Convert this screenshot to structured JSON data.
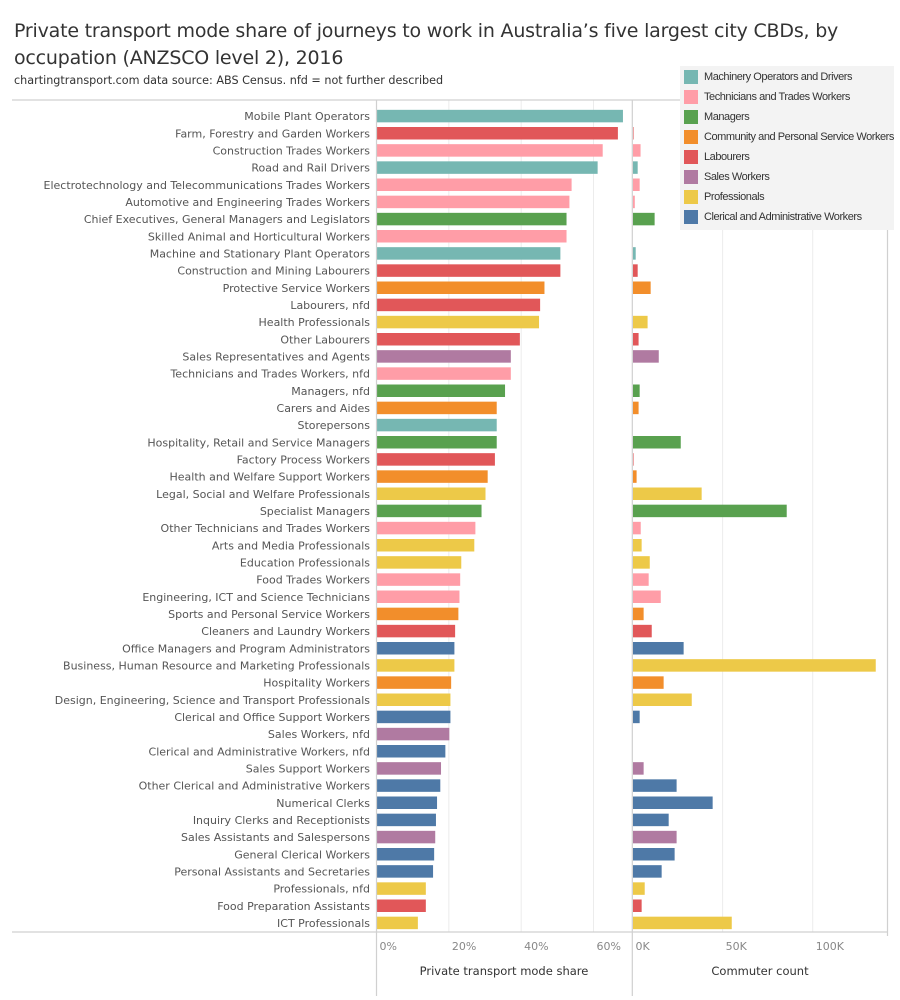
{
  "header": {
    "title": "Private transport mode share of journeys to work in Australia’s five largest city CBDs, by occupation (ANZSCO level 2), 2016",
    "subtitle": "chartingtransport.com  data source: ABS Census.  nfd = not further described"
  },
  "legend": {
    "items": [
      {
        "label": "Machinery Operators and Drivers",
        "color": "#76b7b2"
      },
      {
        "label": "Technicians and Trades Workers",
        "color": "#ff9da7"
      },
      {
        "label": "Managers",
        "color": "#59a14f"
      },
      {
        "label": "Community and Personal Service Workers",
        "color": "#f28e2b"
      },
      {
        "label": "Labourers",
        "color": "#e15759"
      },
      {
        "label": "Sales Workers",
        "color": "#b07aa1"
      },
      {
        "label": "Professionals",
        "color": "#edc948"
      },
      {
        "label": "Clerical and Administrative Workers",
        "color": "#4e79a7"
      }
    ]
  },
  "chart_data": {
    "type": "bar",
    "orientation": "horizontal",
    "title": "Private transport mode share of journeys to work in Australia’s five largest city CBDs, by occupation (ANZSCO level 2), 2016",
    "legend_position": "top-right",
    "grid": true,
    "categories": [
      "Mobile Plant Operators",
      "Farm, Forestry and Garden Workers",
      "Construction Trades Workers",
      "Road and Rail Drivers",
      "Electrotechnology and Telecommunications Trades Workers",
      "Automotive and Engineering Trades Workers",
      "Chief Executives, General Managers and Legislators",
      "Skilled Animal and Horticultural Workers",
      "Machine and Stationary Plant Operators",
      "Construction and Mining Labourers",
      "Protective Service Workers",
      "Labourers, nfd",
      "Health Professionals",
      "Other Labourers",
      "Sales Representatives and Agents",
      "Technicians and Trades Workers, nfd",
      "Managers, nfd",
      "Carers and Aides",
      "Storepersons",
      "Hospitality, Retail and Service Managers",
      "Factory Process Workers",
      "Health and Welfare Support Workers",
      "Legal, Social and Welfare Professionals",
      "Specialist Managers",
      "Other Technicians and Trades Workers",
      "Arts and Media Professionals",
      "Education Professionals",
      "Food Trades Workers",
      "Engineering, ICT and Science Technicians",
      "Sports and Personal Service Workers",
      "Cleaners and Laundry Workers",
      "Office Managers and Program Administrators",
      "Business, Human Resource and Marketing Professionals",
      "Hospitality Workers",
      "Design, Engineering, Science and Transport Professionals",
      "Clerical and Office Support Workers",
      "Sales Workers, nfd",
      "Clerical and Administrative Workers, nfd",
      "Sales Support Workers",
      "Other Clerical and Administrative Workers",
      "Numerical Clerks",
      "Inquiry Clerks and Receptionists",
      "Sales Assistants and Salespersons",
      "General Clerical Workers",
      "Personal Assistants and Secretaries",
      "Professionals, nfd",
      "Food Preparation Assistants",
      "ICT Professionals"
    ],
    "groups": [
      "Machinery Operators and Drivers",
      "Labourers",
      "Technicians and Trades Workers",
      "Machinery Operators and Drivers",
      "Technicians and Trades Workers",
      "Technicians and Trades Workers",
      "Managers",
      "Technicians and Trades Workers",
      "Machinery Operators and Drivers",
      "Labourers",
      "Community and Personal Service Workers",
      "Labourers",
      "Professionals",
      "Labourers",
      "Sales Workers",
      "Technicians and Trades Workers",
      "Managers",
      "Community and Personal Service Workers",
      "Machinery Operators and Drivers",
      "Managers",
      "Labourers",
      "Community and Personal Service Workers",
      "Professionals",
      "Managers",
      "Technicians and Trades Workers",
      "Professionals",
      "Professionals",
      "Technicians and Trades Workers",
      "Technicians and Trades Workers",
      "Community and Personal Service Workers",
      "Labourers",
      "Clerical and Administrative Workers",
      "Professionals",
      "Community and Personal Service Workers",
      "Professionals",
      "Clerical and Administrative Workers",
      "Sales Workers",
      "Clerical and Administrative Workers",
      "Sales Workers",
      "Clerical and Administrative Workers",
      "Clerical and Administrative Workers",
      "Clerical and Administrative Workers",
      "Sales Workers",
      "Clerical and Administrative Workers",
      "Clerical and Administrative Workers",
      "Professionals",
      "Labourers",
      "Professionals"
    ],
    "panels": [
      {
        "name": "Private transport mode share",
        "xlabel": "Private transport mode share",
        "unit": "percent",
        "xlim": [
          0,
          70.5
        ],
        "ticks": [
          0,
          20,
          40,
          60
        ],
        "tick_labels": [
          "0%",
          "20%",
          "40%",
          "60%"
        ],
        "values": [
          68.0,
          66.6,
          62.4,
          61.0,
          53.8,
          53.2,
          52.4,
          52.4,
          50.7,
          50.7,
          46.3,
          45.1,
          44.8,
          39.5,
          37.0,
          37.0,
          35.4,
          33.1,
          33.1,
          33.1,
          32.6,
          30.6,
          30.0,
          28.9,
          27.2,
          26.9,
          23.3,
          23.0,
          22.8,
          22.5,
          21.6,
          21.4,
          21.4,
          20.5,
          20.3,
          20.3,
          20.0,
          18.9,
          17.7,
          17.5,
          16.6,
          16.3,
          16.1,
          15.8,
          15.5,
          13.5,
          13.5,
          11.3
        ]
      },
      {
        "name": "Commuter count",
        "xlabel": "Commuter count",
        "unit": "thousands",
        "xlim": [
          0,
          141.5
        ],
        "ticks": [
          0,
          50,
          100
        ],
        "tick_labels": [
          "0K",
          "50K",
          "100K"
        ],
        "values": [
          0.2,
          0.3,
          4.2,
          2.6,
          3.7,
          1.0,
          12.0,
          0.2,
          1.5,
          2.6,
          9.8,
          0.2,
          8.1,
          3.1,
          14.3,
          0.2,
          3.7,
          3.1,
          0.2,
          26.5,
          0.3,
          2.0,
          38.1,
          85.3,
          4.3,
          4.8,
          9.3,
          8.7,
          15.4,
          5.9,
          10.4,
          28.1,
          134.7,
          17.0,
          32.6,
          3.7,
          0.1,
          0.1,
          5.9,
          24.2,
          44.2,
          19.8,
          24.2,
          23.1,
          15.9,
          6.5,
          4.8,
          54.8
        ]
      }
    ]
  }
}
